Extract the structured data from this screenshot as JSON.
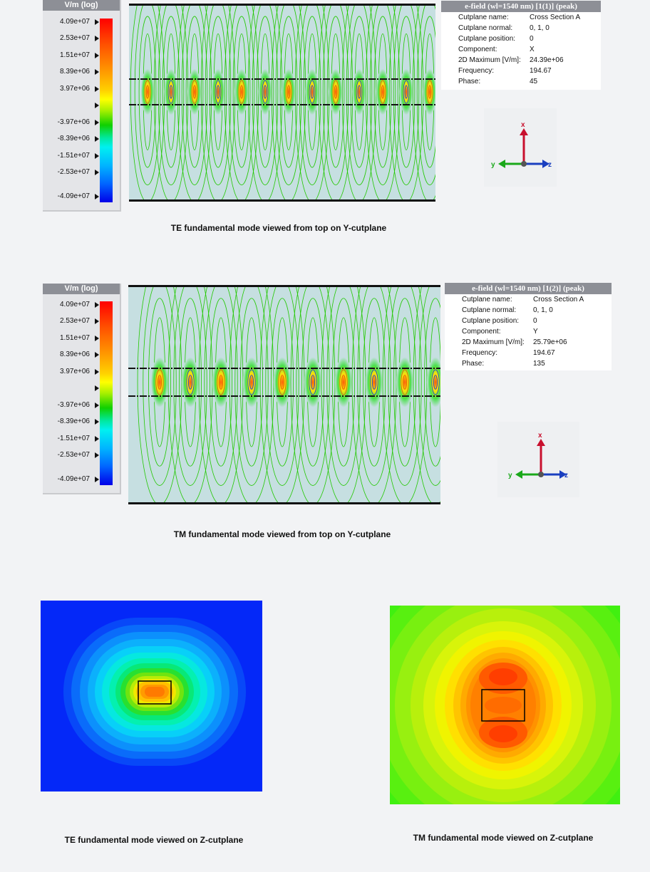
{
  "legend_unit": "V/m (log)",
  "legend_ticks": [
    "4.09e+07",
    "2.53e+07",
    "1.51e+07",
    "8.39e+06",
    "3.97e+06",
    "",
    "-3.97e+06",
    "-8.39e+06",
    "-1.51e+07",
    "-2.53e+07",
    "-4.09e+07"
  ],
  "panels": [
    {
      "title": "e-field (wl=1540 nm) [1(1)] (peak)",
      "rows": [
        {
          "key": "Cutplane name:",
          "value": "Cross Section A"
        },
        {
          "key": "Cutplane normal:",
          "value": "0, 1, 0"
        },
        {
          "key": "Cutplane position:",
          "value": "0"
        },
        {
          "key": "Component:",
          "value": "X"
        },
        {
          "key": "2D Maximum [V/m]:",
          "value": "24.39e+06"
        },
        {
          "key": "Frequency:",
          "value": "194.67"
        },
        {
          "key": "Phase:",
          "value": "45"
        }
      ],
      "caption": "TE fundamental mode viewed from top on Y-cutplane"
    },
    {
      "title": "e-field (wl=1540 nm) [1(2)] (peak)",
      "rows": [
        {
          "key": "Cutplane name:",
          "value": "Cross Section A"
        },
        {
          "key": "Cutplane normal:",
          "value": "0, 1, 0"
        },
        {
          "key": "Cutplane position:",
          "value": "0"
        },
        {
          "key": "Component:",
          "value": "Y"
        },
        {
          "key": "2D Maximum [V/m]:",
          "value": "25.79e+06"
        },
        {
          "key": "Frequency:",
          "value": "194.67"
        },
        {
          "key": "Phase:",
          "value": "135"
        }
      ],
      "caption": "TM fundamental mode viewed from top on Y-cutplane"
    }
  ],
  "axes_labels": {
    "x": "x",
    "y": "y",
    "z": "z"
  },
  "z_captions": {
    "te": "TE fundamental mode viewed on Z-cutplane",
    "tm": "TM fundamental mode viewed on Z-cutplane"
  },
  "colors": {
    "red": "#ff1a00",
    "yellow": "#ffff00",
    "green": "#10d000",
    "cyan": "#00f0f0",
    "blue": "#0000f0",
    "background_field": "#c6dfe1"
  }
}
